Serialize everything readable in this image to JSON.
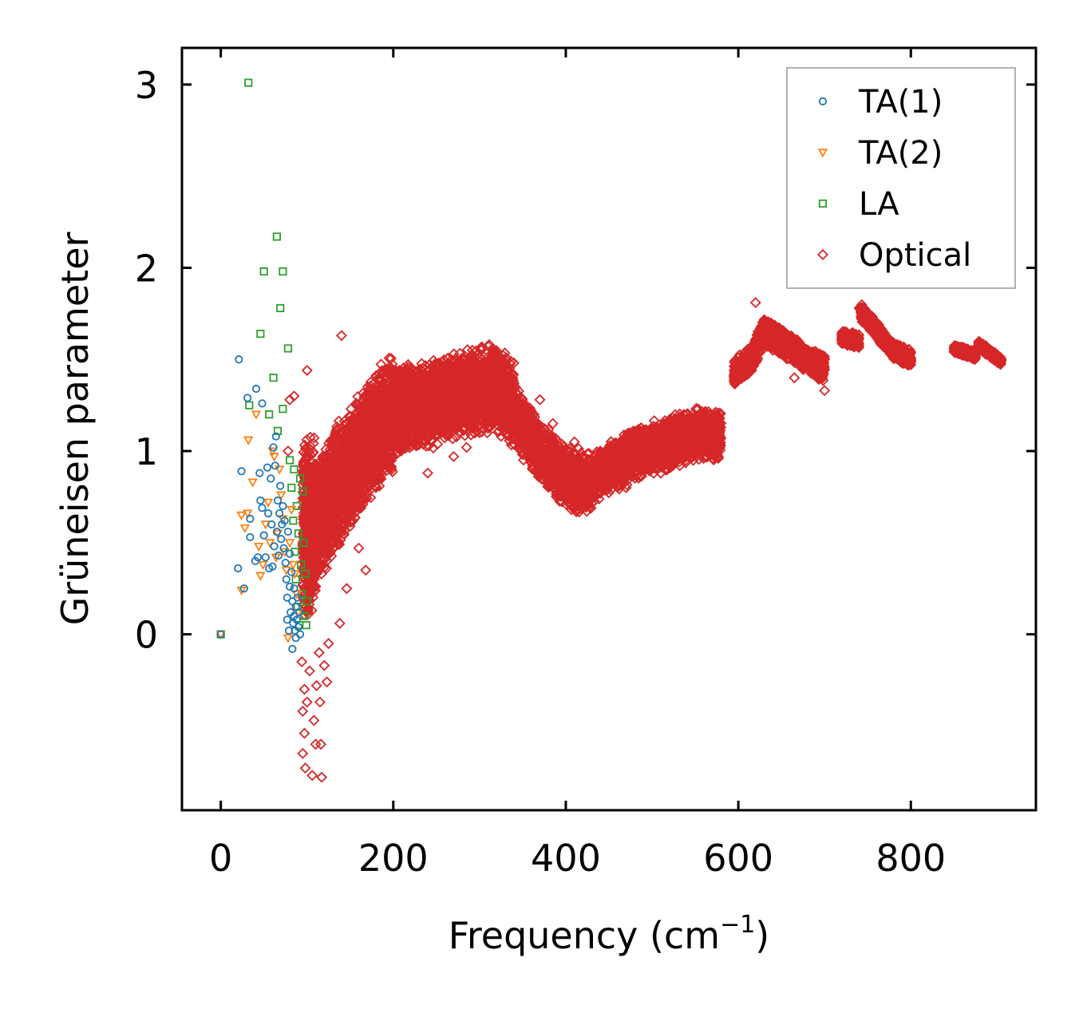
{
  "chart_data": {
    "type": "scatter",
    "title": "",
    "xlabel": "Frequency (cm",
    "xlabel_sup": "−1",
    "xlabel_close": ")",
    "ylabel": "Grüneisen parameter",
    "xlim": [
      -45,
      945
    ],
    "ylim": [
      -0.96,
      3.2
    ],
    "xticks": [
      0,
      200,
      400,
      600,
      800
    ],
    "yticks": [
      0,
      1,
      2,
      3
    ],
    "legend_position": "top-right",
    "series": [
      {
        "name": "TA(1)",
        "color": "#1f77b4",
        "marker": "circle",
        "points": [
          [
            0,
            0
          ],
          [
            21,
            1.5
          ],
          [
            20,
            0.36
          ],
          [
            24,
            0.89
          ],
          [
            27,
            0.25
          ],
          [
            31,
            1.29
          ],
          [
            34,
            0.63
          ],
          [
            34,
            0.53
          ],
          [
            40,
            0.4
          ],
          [
            41,
            1.34
          ],
          [
            43,
            0.42
          ],
          [
            45,
            0.88
          ],
          [
            46,
            0.73
          ],
          [
            48,
            1.26
          ],
          [
            48,
            0.69
          ],
          [
            50,
            0.54
          ],
          [
            52,
            0.42
          ],
          [
            54,
            0.91
          ],
          [
            55,
            0.66
          ],
          [
            56,
            0.36
          ],
          [
            58,
            0.85
          ],
          [
            59,
            0.6
          ],
          [
            60,
            0.37
          ],
          [
            61,
            1.02
          ],
          [
            62,
            0.48
          ],
          [
            63,
            0.92
          ],
          [
            64,
            1.08
          ],
          [
            65,
            0.56
          ],
          [
            66,
            0.73
          ],
          [
            67,
            0.43
          ],
          [
            68,
            0.66
          ],
          [
            69,
            0.81
          ],
          [
            70,
            0.52
          ],
          [
            71,
            0.6
          ],
          [
            72,
            0.7
          ],
          [
            73,
            0.47
          ],
          [
            74,
            0.62
          ],
          [
            75,
            0.39
          ],
          [
            76,
            0.3
          ],
          [
            77,
            0.2
          ],
          [
            77,
            0.08
          ],
          [
            78,
            0.56
          ],
          [
            79,
            0.02
          ],
          [
            80,
            0.44
          ],
          [
            80,
            0.26
          ],
          [
            81,
            0.12
          ],
          [
            82,
            0.34
          ],
          [
            83,
            -0.08
          ],
          [
            83,
            0.18
          ],
          [
            84,
            0.06
          ],
          [
            85,
            0.25
          ],
          [
            85,
            0.1
          ],
          [
            86,
            0.02
          ],
          [
            87,
            0.15
          ],
          [
            87,
            -0.02
          ],
          [
            88,
            0.08
          ],
          [
            89,
            0.2
          ],
          [
            90,
            0.04
          ],
          [
            91,
            0.12
          ],
          [
            92,
            0.0
          ]
        ]
      },
      {
        "name": "TA(2)",
        "color": "#ff7f0e",
        "marker": "triangle-down",
        "points": [
          [
            0,
            0
          ],
          [
            24,
            0.24
          ],
          [
            24,
            0.65
          ],
          [
            28,
            0.58
          ],
          [
            31,
            0.66
          ],
          [
            32,
            1.06
          ],
          [
            37,
            0.83
          ],
          [
            41,
            1.2
          ],
          [
            44,
            0.48
          ],
          [
            46,
            0.32
          ],
          [
            49,
            0.38
          ],
          [
            52,
            0.6
          ],
          [
            55,
            0.72
          ],
          [
            57,
            0.5
          ],
          [
            60,
            1.0
          ],
          [
            62,
            0.97
          ],
          [
            64,
            0.42
          ],
          [
            66,
            0.55
          ],
          [
            68,
            0.9
          ],
          [
            70,
            0.76
          ],
          [
            72,
            0.63
          ],
          [
            74,
            0.45
          ],
          [
            76,
            0.35
          ],
          [
            78,
            -0.02
          ],
          [
            80,
            0.5
          ],
          [
            82,
            0.68
          ],
          [
            84,
            0.38
          ],
          [
            86,
            0.33
          ],
          [
            88,
            0.22
          ],
          [
            90,
            0.12
          ]
        ]
      },
      {
        "name": "LA",
        "color": "#2ca02c",
        "marker": "square",
        "points": [
          [
            0,
            0
          ],
          [
            32,
            3.01
          ],
          [
            33,
            1.25
          ],
          [
            46,
            1.64
          ],
          [
            50,
            1.98
          ],
          [
            56,
            1.2
          ],
          [
            61,
            1.4
          ],
          [
            65,
            2.17
          ],
          [
            66,
            1.11
          ],
          [
            69,
            1.78
          ],
          [
            72,
            1.98
          ],
          [
            72,
            1.23
          ],
          [
            78,
            1.56
          ],
          [
            80,
            0.95
          ],
          [
            82,
            0.8
          ],
          [
            84,
            0.62
          ],
          [
            85,
            0.9
          ],
          [
            86,
            0.45
          ],
          [
            87,
            0.3
          ],
          [
            88,
            0.7
          ],
          [
            89,
            0.15
          ],
          [
            90,
            0.55
          ],
          [
            91,
            0.05
          ],
          [
            92,
            0.85
          ],
          [
            93,
            0.38
          ],
          [
            94,
            0.22
          ],
          [
            95,
            0.78
          ],
          [
            96,
            0.5
          ],
          [
            97,
            0.1
          ],
          [
            98,
            0.33
          ],
          [
            99,
            0.05
          ],
          [
            100,
            0.18
          ]
        ]
      },
      {
        "name": "Optical",
        "color": "#d62728",
        "marker": "diamond",
        "points": [
          [
            140,
            1.63
          ],
          [
            100,
            1.44
          ],
          [
            85,
            1.3
          ],
          [
            80,
            1.28
          ],
          [
            78,
            1.0
          ],
          [
            106,
            -0.77
          ],
          [
            117,
            -0.78
          ],
          [
            98,
            -0.73
          ],
          [
            95,
            -0.65
          ],
          [
            110,
            -0.6
          ],
          [
            116,
            -0.6
          ],
          [
            97,
            -0.54
          ],
          [
            108,
            -0.47
          ],
          [
            95,
            -0.42
          ],
          [
            100,
            -0.37
          ],
          [
            115,
            -0.37
          ],
          [
            97,
            -0.3
          ],
          [
            111,
            -0.28
          ],
          [
            123,
            -0.26
          ],
          [
            103,
            -0.2
          ],
          [
            120,
            -0.17
          ],
          [
            94,
            -0.15
          ],
          [
            125,
            -0.05
          ],
          [
            114,
            -0.1
          ],
          [
            138,
            0.06
          ],
          [
            146,
            0.25
          ],
          [
            150,
            0.59
          ],
          [
            160,
            0.47
          ],
          [
            168,
            0.35
          ],
          [
            198,
            0.9
          ],
          [
            240,
            0.88
          ],
          [
            270,
            0.97
          ],
          [
            285,
            1.02
          ],
          [
            300,
            1.1
          ],
          [
            320,
            1.22
          ],
          [
            340,
            1.35
          ],
          [
            355,
            1.18
          ],
          [
            370,
            1.28
          ],
          [
            385,
            1.15
          ],
          [
            410,
            1.05
          ],
          [
            440,
            1.0
          ],
          [
            470,
            0.8
          ],
          [
            510,
            0.88
          ],
          [
            540,
            1.2
          ],
          [
            620,
            1.81
          ],
          [
            645,
            1.55
          ],
          [
            665,
            1.4
          ],
          [
            700,
            1.33
          ],
          [
            720,
            1.6
          ],
          [
            740,
            1.78
          ],
          [
            790,
            1.48
          ],
          [
            860,
            1.55
          ],
          [
            900,
            1.5
          ]
        ],
        "bands": [
          {
            "xmin": 95,
            "xmax": 110,
            "center": [
              [
                95,
                0.55
              ],
              [
                110,
                0.6
              ]
            ],
            "spread": 0.5
          },
          {
            "xmin": 105,
            "xmax": 200,
            "center": [
              [
                105,
                0.55
              ],
              [
                140,
                0.85
              ],
              [
                170,
                1.05
              ],
              [
                200,
                1.2
              ]
            ],
            "spread": 0.35
          },
          {
            "xmin": 200,
            "xmax": 340,
            "center": [
              [
                200,
                1.22
              ],
              [
                240,
                1.25
              ],
              [
                280,
                1.32
              ],
              [
                320,
                1.35
              ],
              [
                340,
                1.25
              ]
            ],
            "spread": 0.25
          },
          {
            "xmin": 340,
            "xmax": 430,
            "center": [
              [
                340,
                1.2
              ],
              [
                370,
                1.0
              ],
              [
                400,
                0.85
              ],
              [
                430,
                0.82
              ]
            ],
            "spread": 0.18
          },
          {
            "xmin": 430,
            "xmax": 580,
            "center": [
              [
                430,
                0.85
              ],
              [
                480,
                0.98
              ],
              [
                520,
                1.05
              ],
              [
                560,
                1.1
              ],
              [
                580,
                1.08
              ]
            ],
            "spread": 0.15
          },
          {
            "xmin": 595,
            "xmax": 700,
            "center": [
              [
                595,
                1.42
              ],
              [
                615,
                1.5
              ],
              [
                630,
                1.65
              ],
              [
                650,
                1.6
              ],
              [
                680,
                1.5
              ],
              [
                700,
                1.45
              ]
            ],
            "spread": 0.08
          },
          {
            "xmin": 720,
            "xmax": 740,
            "center": [
              [
                720,
                1.62
              ],
              [
                740,
                1.6
              ]
            ],
            "spread": 0.04
          },
          {
            "xmin": 742,
            "xmax": 800,
            "center": [
              [
                742,
                1.76
              ],
              [
                760,
                1.66
              ],
              [
                780,
                1.55
              ],
              [
                800,
                1.5
              ]
            ],
            "spread": 0.05
          },
          {
            "xmin": 850,
            "xmax": 875,
            "center": [
              [
                850,
                1.56
              ],
              [
                875,
                1.52
              ]
            ],
            "spread": 0.025
          },
          {
            "xmin": 878,
            "xmax": 905,
            "center": [
              [
                878,
                1.58
              ],
              [
                905,
                1.49
              ]
            ],
            "spread": 0.025
          }
        ]
      }
    ]
  }
}
